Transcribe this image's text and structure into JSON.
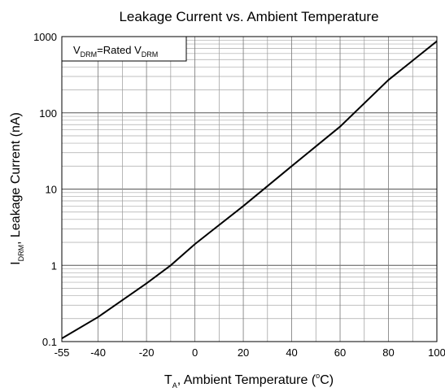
{
  "chart_data": {
    "type": "line",
    "title": "Leakage Current vs. Ambient Temperature",
    "xlabel": [
      "T",
      "A",
      ", Ambient Temperature (",
      "o",
      "C)"
    ],
    "ylabel": [
      "I",
      "DRM",
      ", Leakage Current (nA)"
    ],
    "annotation": [
      "V",
      "DRM",
      "=Rated V",
      "DRM"
    ],
    "x": [
      -55,
      -40,
      -20,
      -10,
      0,
      20,
      40,
      60,
      80,
      100
    ],
    "series": [
      {
        "name": "IDRM",
        "color": "#000000",
        "values": [
          0.11,
          0.21,
          0.58,
          1.0,
          1.9,
          6,
          20,
          66,
          270,
          870
        ]
      }
    ],
    "xlim": [
      -55,
      100
    ],
    "xticks": [
      -55,
      -40,
      -20,
      0,
      20,
      40,
      60,
      80,
      100
    ],
    "ylim": [
      0.1,
      1000
    ],
    "yticks": [
      0.1,
      1,
      10,
      100,
      1000
    ],
    "log_y": true,
    "grid": true
  }
}
